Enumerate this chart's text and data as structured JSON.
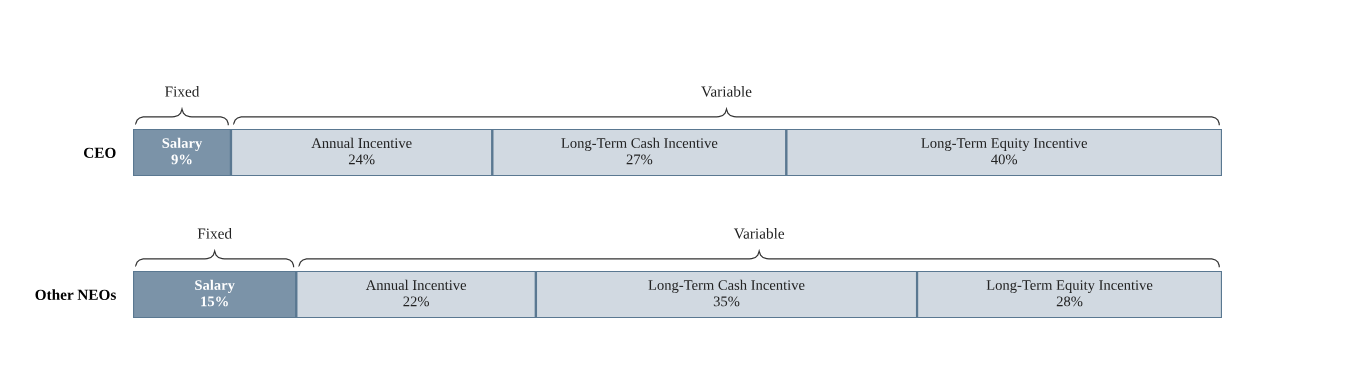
{
  "chart_data": [
    {
      "type": "bar",
      "orientation": "horizontal",
      "stacked": true,
      "categories": [
        "CEO"
      ],
      "xlim": [
        0,
        100
      ],
      "tick_labels": "y",
      "grid": false,
      "annotations": [
        "Fixed",
        "Variable"
      ],
      "series": [
        {
          "name": "Salary",
          "color": "#7b93a8",
          "values": [
            9
          ],
          "value_labels": [
            "9%"
          ]
        },
        {
          "name": "Annual Incentive",
          "color": "#d1d9e1",
          "values": [
            24
          ],
          "value_labels": [
            "24%"
          ]
        },
        {
          "name": "Long-Term Cash Incentive",
          "color": "#d1d9e1",
          "values": [
            27
          ],
          "value_labels": [
            "27%"
          ]
        },
        {
          "name": "Long-Term Equity Incentive",
          "color": "#d1d9e1",
          "values": [
            40
          ],
          "value_labels": [
            "40%"
          ]
        }
      ]
    },
    {
      "type": "bar",
      "orientation": "horizontal",
      "stacked": true,
      "categories": [
        "Other NEOs"
      ],
      "xlim": [
        0,
        100
      ],
      "tick_labels": "y",
      "grid": false,
      "annotations": [
        "Fixed",
        "Variable"
      ],
      "series": [
        {
          "name": "Salary",
          "color": "#7b93a8",
          "values": [
            15
          ],
          "value_labels": [
            "15%"
          ]
        },
        {
          "name": "Annual Incentive",
          "color": "#d1d9e1",
          "values": [
            22
          ],
          "value_labels": [
            "22%"
          ]
        },
        {
          "name": "Long-Term Cash Incentive",
          "color": "#d1d9e1",
          "values": [
            35
          ],
          "value_labels": [
            "35%"
          ]
        },
        {
          "name": "Long-Term Equity Incentive",
          "color": "#d1d9e1",
          "values": [
            28
          ],
          "value_labels": [
            "28%"
          ]
        }
      ]
    }
  ]
}
